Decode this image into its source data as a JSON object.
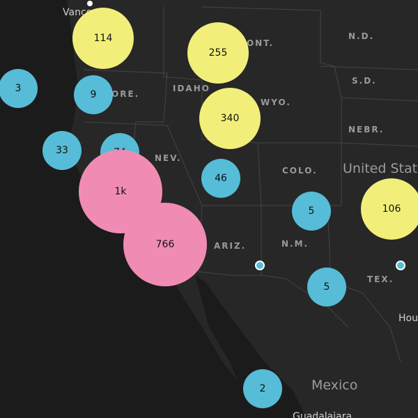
{
  "labels": {
    "vancouver": "Vancouver",
    "mont": "MONT.",
    "nd": "N.D.",
    "sd": "S.D.",
    "idaho": "IDAHO",
    "ore": "ORE.",
    "wyo": "WYO.",
    "nebr": "NEBR.",
    "nev": "NEV.",
    "colo": "COLO.",
    "united_states": "United States",
    "ariz": "ARIZ.",
    "nm": "N.M.",
    "tex": "TEX.",
    "houston": "Houston",
    "mexico": "Mexico",
    "guadalajara": "Guadalajara"
  },
  "clusters": [
    "114",
    "255",
    "3",
    "9",
    "340",
    "33",
    "74",
    "1k",
    "46",
    "5",
    "106",
    "766",
    "5",
    "2"
  ]
}
